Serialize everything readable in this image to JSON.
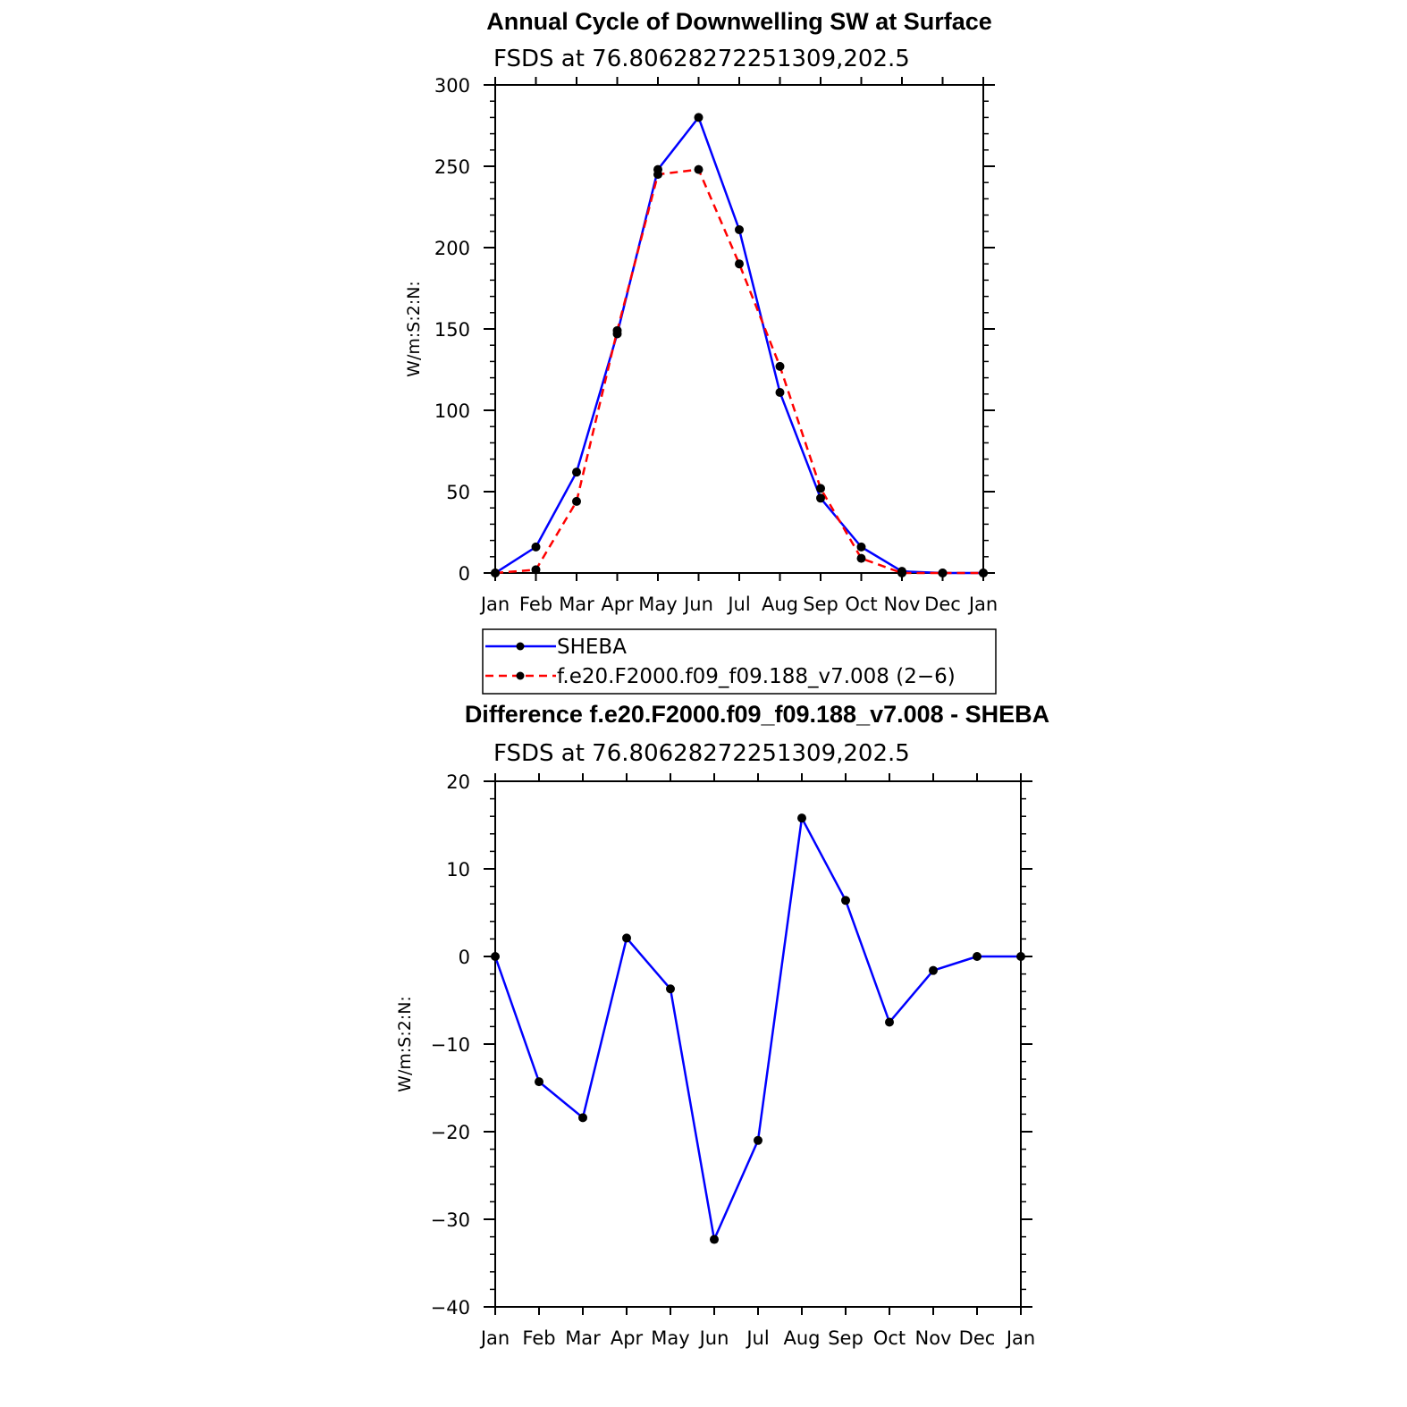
{
  "chart_data": [
    {
      "type": "line",
      "title": "Annual Cycle of Downwelling SW at Surface",
      "subtitle": "FSDS at 76.80628272251309,202.5",
      "xlabel": "",
      "ylabel": "W/m:S:2:N:",
      "categories": [
        "Jan",
        "Feb",
        "Mar",
        "Apr",
        "May",
        "Jun",
        "Jul",
        "Aug",
        "Sep",
        "Oct",
        "Nov",
        "Dec",
        "Jan"
      ],
      "ylim": [
        0,
        300
      ],
      "yticks": [
        0,
        50,
        100,
        150,
        200,
        250,
        300
      ],
      "grid": false,
      "legend_placement": "below",
      "series": [
        {
          "name": "SHEBA",
          "color": "#0000ff",
          "dash": "solid",
          "values": [
            0,
            16,
            62,
            147,
            248,
            280,
            211,
            111,
            46,
            16,
            1,
            0,
            0
          ]
        },
        {
          "name": "f.e20.F2000.f09_f09.188_v7.008 (2−6)",
          "color": "#ff0000",
          "dash": "dashed",
          "values": [
            0,
            2,
            44,
            149,
            245,
            248,
            190,
            127,
            52,
            9,
            0,
            0,
            0
          ]
        }
      ]
    },
    {
      "type": "line",
      "title": "Difference f.e20.F2000.f09_f09.188_v7.008 - SHEBA",
      "subtitle": "FSDS at 76.80628272251309,202.5",
      "xlabel": "",
      "ylabel": "W/m:S:2:N:",
      "categories": [
        "Jan",
        "Feb",
        "Mar",
        "Apr",
        "May",
        "Jun",
        "Jul",
        "Aug",
        "Sep",
        "Oct",
        "Nov",
        "Dec",
        "Jan"
      ],
      "ylim": [
        -40,
        20
      ],
      "yticks": [
        -40,
        -30,
        -20,
        -10,
        0,
        10,
        20
      ],
      "ytick_labels": [
        "−40",
        "−30",
        "−20",
        "−10",
        "0",
        "10",
        "20"
      ],
      "grid": false,
      "series": [
        {
          "color": "#0000ff",
          "dash": "solid",
          "values": [
            0,
            -14.3,
            -18.4,
            2.1,
            -3.7,
            -32.3,
            -21,
            15.8,
            6.4,
            -7.5,
            -1.6,
            0,
            0
          ]
        }
      ]
    }
  ]
}
